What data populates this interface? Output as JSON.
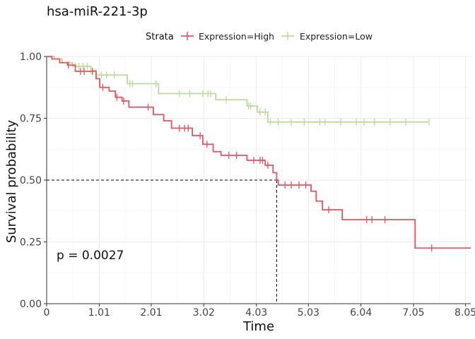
{
  "chart_data": {
    "type": "line",
    "chart_kind": "kaplan-meier step survival curve",
    "title": "hsa-miR-221-3p",
    "xlabel": "Time",
    "ylabel": "Survival probability",
    "legend_title": "Strata",
    "legend_position": "top",
    "grid": true,
    "xlim": [
      0,
      8.15
    ],
    "ylim": [
      0,
      1
    ],
    "x_ticks": [
      0,
      1.01,
      2.01,
      3.02,
      4.03,
      5.03,
      6.04,
      7.05,
      8.05
    ],
    "x_tick_labels": [
      "0",
      "1.01",
      "2.01",
      "3.02",
      "4.03",
      "5.03",
      "6.04",
      "7.05",
      "8.05"
    ],
    "y_ticks": [
      0,
      0.25,
      0.5,
      0.75,
      1
    ],
    "y_tick_labels": [
      "0.00",
      "0.25",
      "0.50",
      "0.75",
      "1.00"
    ],
    "annotation": "p = 0.0027",
    "median_survival": {
      "x": 4.42,
      "y": 0.5
    },
    "series": [
      {
        "name": "Expression=High",
        "color": "#f0515f",
        "steps": [
          [
            0,
            1.0
          ],
          [
            0.1,
            0.99
          ],
          [
            0.25,
            0.975
          ],
          [
            0.4,
            0.965
          ],
          [
            0.55,
            0.94
          ],
          [
            0.95,
            0.91
          ],
          [
            1.02,
            0.875
          ],
          [
            1.2,
            0.86
          ],
          [
            1.32,
            0.835
          ],
          [
            1.45,
            0.82
          ],
          [
            1.58,
            0.795
          ],
          [
            2.05,
            0.765
          ],
          [
            2.25,
            0.74
          ],
          [
            2.4,
            0.71
          ],
          [
            2.8,
            0.68
          ],
          [
            3.0,
            0.645
          ],
          [
            3.2,
            0.615
          ],
          [
            3.35,
            0.6
          ],
          [
            3.85,
            0.58
          ],
          [
            4.2,
            0.56
          ],
          [
            4.35,
            0.53
          ],
          [
            4.42,
            0.5
          ],
          [
            4.45,
            0.48
          ],
          [
            5.08,
            0.455
          ],
          [
            5.18,
            0.415
          ],
          [
            5.3,
            0.38
          ],
          [
            5.68,
            0.34
          ],
          [
            7.08,
            0.225
          ],
          [
            8.15,
            0.225
          ]
        ],
        "censors": [
          [
            0.42,
            0.965
          ],
          [
            0.65,
            0.94
          ],
          [
            0.72,
            0.94
          ],
          [
            0.88,
            0.94
          ],
          [
            1.08,
            0.875
          ],
          [
            1.35,
            0.835
          ],
          [
            1.48,
            0.82
          ],
          [
            1.95,
            0.795
          ],
          [
            2.55,
            0.71
          ],
          [
            2.65,
            0.71
          ],
          [
            2.72,
            0.71
          ],
          [
            2.95,
            0.68
          ],
          [
            3.08,
            0.645
          ],
          [
            3.5,
            0.6
          ],
          [
            3.65,
            0.6
          ],
          [
            3.98,
            0.58
          ],
          [
            4.1,
            0.58
          ],
          [
            4.15,
            0.58
          ],
          [
            4.25,
            0.56
          ],
          [
            4.58,
            0.48
          ],
          [
            4.7,
            0.48
          ],
          [
            4.85,
            0.48
          ],
          [
            4.98,
            0.48
          ],
          [
            5.42,
            0.38
          ],
          [
            6.15,
            0.34
          ],
          [
            6.25,
            0.34
          ],
          [
            6.5,
            0.34
          ],
          [
            7.4,
            0.225
          ]
        ]
      },
      {
        "name": "Expression=Low",
        "color": "#b8dc9a",
        "steps": [
          [
            0,
            1.0
          ],
          [
            0.15,
            0.99
          ],
          [
            0.3,
            0.975
          ],
          [
            0.5,
            0.96
          ],
          [
            0.85,
            0.945
          ],
          [
            0.95,
            0.925
          ],
          [
            1.55,
            0.89
          ],
          [
            2.15,
            0.85
          ],
          [
            3.25,
            0.825
          ],
          [
            3.85,
            0.8
          ],
          [
            4.05,
            0.775
          ],
          [
            4.25,
            0.735
          ],
          [
            7.35,
            0.735
          ]
        ],
        "censors": [
          [
            0.55,
            0.96
          ],
          [
            0.62,
            0.96
          ],
          [
            0.7,
            0.96
          ],
          [
            0.78,
            0.96
          ],
          [
            0.85,
            0.945
          ],
          [
            1.05,
            0.925
          ],
          [
            1.15,
            0.925
          ],
          [
            1.3,
            0.925
          ],
          [
            1.6,
            0.89
          ],
          [
            1.65,
            0.89
          ],
          [
            2.1,
            0.89
          ],
          [
            2.55,
            0.85
          ],
          [
            2.75,
            0.85
          ],
          [
            3.0,
            0.85
          ],
          [
            3.1,
            0.85
          ],
          [
            3.15,
            0.85
          ],
          [
            3.45,
            0.825
          ],
          [
            3.88,
            0.8
          ],
          [
            3.92,
            0.8
          ],
          [
            4.1,
            0.775
          ],
          [
            4.2,
            0.775
          ],
          [
            4.3,
            0.735
          ],
          [
            4.45,
            0.735
          ],
          [
            4.7,
            0.735
          ],
          [
            4.95,
            0.735
          ],
          [
            5.25,
            0.735
          ],
          [
            5.35,
            0.735
          ],
          [
            5.65,
            0.735
          ],
          [
            5.95,
            0.735
          ],
          [
            6.1,
            0.735
          ],
          [
            6.3,
            0.735
          ],
          [
            6.6,
            0.735
          ],
          [
            6.9,
            0.735
          ],
          [
            7.35,
            0.735
          ]
        ]
      }
    ]
  }
}
